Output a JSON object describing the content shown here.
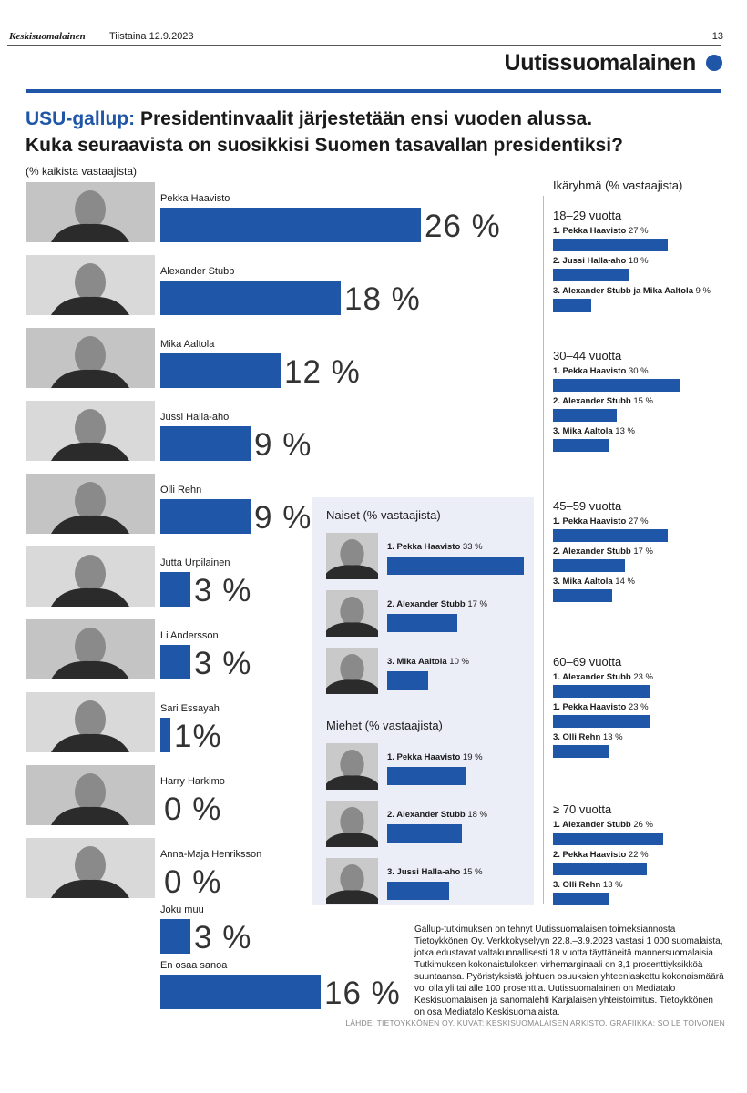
{
  "header": {
    "publication": "Keskisuomalainen",
    "date": "Tiistaina 12.9.2023",
    "page_number": "13",
    "section": "Uutissuomalainen"
  },
  "title_lead": "USU-gallup:",
  "title_rest": "Presidentinvaalit järjestetään ensi vuoden alussa.",
  "title_line2": "Kuka seuraavista on suosikkisi Suomen tasavallan presidentiksi?",
  "subtitle": "(% kaikista vastaajista)",
  "note": "Gallup-tutkimuksen on tehnyt Uutissuomalaisen toimeksiannosta Tietoykkönen Oy. Verkkokyselyyn 22.8.–3.9.2023 vastasi 1 000 suomalaista, jotka edustavat valtakunnallisesti 18 vuotta täyttäneitä mannersuomalaisia. Tutkimuksen kokonaistuloksen virhemarginaali on 3,1 prosenttiyksikköä suuntaansa. Pyöristyksistä johtuen osuuksien yhteenlaskettu kokonaismäärä voi olla yli tai alle 100 prosenttia. Uutissuomalainen on Mediatalo Keskisuomalaisen ja sanomalehti Karjalaisen yhteistoimitus. Tietoykkönen on osa Mediatalo Keskisuomalaista.",
  "source": "LÄHDE: TIETOYKKÖNEN OY. KUVAT: KESKISUOMALAISEN ARKISTO. GRAFIIKKA: SOILE TOIVONEN",
  "colors": {
    "accent": "#1f56a8",
    "panel": "#ebedf7"
  },
  "chart_data": [
    {
      "type": "bar",
      "title": "Kuka seuraavista on suosikkisi Suomen tasavallan presidentiksi?",
      "ylabel": "(% kaikista vastaajista)",
      "categories": [
        "Pekka Haavisto",
        "Alexander Stubb",
        "Mika Aaltola",
        "Jussi Halla-aho",
        "Olli Rehn",
        "Jutta Urpilainen",
        "Li Andersson",
        "Sari Essayah",
        "Harry Harkimo",
        "Anna-Maja Henriksson",
        "Joku muu",
        "En osaa sanoa"
      ],
      "values": [
        26,
        18,
        12,
        9,
        9,
        3,
        3,
        1,
        0,
        0,
        3,
        16
      ],
      "labels": [
        "26 %",
        "18 %",
        "12 %",
        "9 %",
        "9 %",
        "3 %",
        "3 %",
        "1%",
        "0 %",
        "0 %",
        "3 %",
        "16 %"
      ]
    },
    {
      "type": "bar",
      "title": "Naiset (% vastaajista)",
      "categories": [
        "1. Pekka Haavisto",
        "2. Alexander Stubb",
        "3. Mika Aaltola"
      ],
      "values": [
        33,
        17,
        10
      ],
      "labels": [
        "33 %",
        "17 %",
        "10 %"
      ]
    },
    {
      "type": "bar",
      "title": "Miehet (% vastaajista)",
      "categories": [
        "1. Pekka Haavisto",
        "2. Alexander Stubb",
        "3. Jussi Halla-aho"
      ],
      "values": [
        19,
        18,
        15
      ],
      "labels": [
        "19 %",
        "18 %",
        "15 %"
      ]
    },
    {
      "type": "bar",
      "title": "Ikäryhmä (% vastaajista)",
      "groups": [
        {
          "name": "18–29 vuotta",
          "categories": [
            "1. Pekka Haavisto",
            "2. Jussi Halla-aho",
            "3. Alexander Stubb ja Mika Aaltola"
          ],
          "values": [
            27,
            18,
            9
          ],
          "labels": [
            "27 %",
            "18 %",
            "9 %"
          ]
        },
        {
          "name": "30–44 vuotta",
          "categories": [
            "1. Pekka Haavisto",
            "2. Alexander Stubb",
            "3. Mika Aaltola"
          ],
          "values": [
            30,
            15,
            13
          ],
          "labels": [
            "30 %",
            "15 %",
            "13 %"
          ]
        },
        {
          "name": "45–59 vuotta",
          "categories": [
            "1. Pekka Haavisto",
            "2. Alexander Stubb",
            "3. Mika Aaltola"
          ],
          "values": [
            27,
            17,
            14
          ],
          "labels": [
            "27 %",
            "17 %",
            "14 %"
          ]
        },
        {
          "name": "60–69 vuotta",
          "categories": [
            "1. Alexander Stubb",
            "1. Pekka Haavisto",
            "3. Olli Rehn"
          ],
          "values": [
            23,
            23,
            13
          ],
          "labels": [
            "23 %",
            "23 %",
            "13 %"
          ]
        },
        {
          "name": "≥ 70 vuotta",
          "categories": [
            "1. Alexander Stubb",
            "2. Pekka Haavisto",
            "3. Olli Rehn"
          ],
          "values": [
            26,
            22,
            13
          ],
          "labels": [
            "26 %",
            "22 %",
            "13 %"
          ]
        }
      ]
    }
  ]
}
